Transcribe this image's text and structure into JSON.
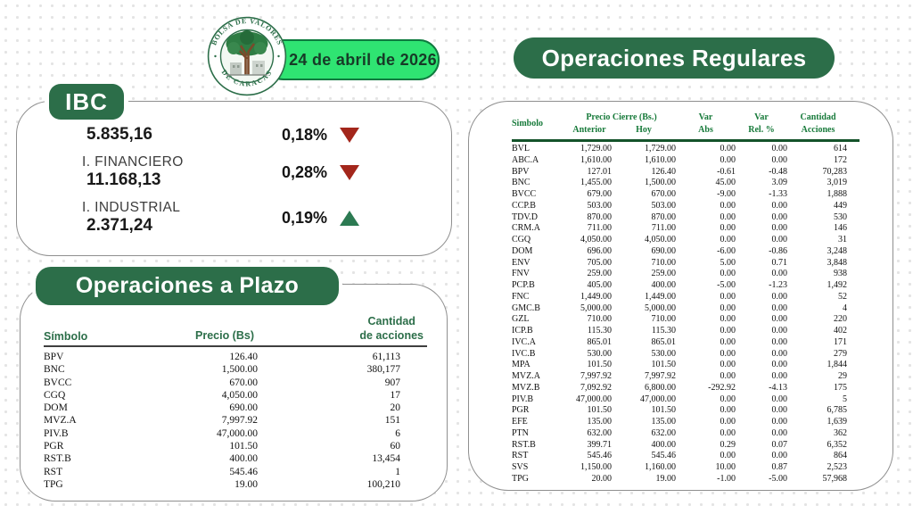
{
  "header": {
    "date": "24 de abril de 2026",
    "logo": {
      "top_text": "BOLSA DE VALORES",
      "bottom_text": "DE CARACAS"
    }
  },
  "ibc": {
    "badge": "IBC",
    "rows": [
      {
        "label": "",
        "value": "5.835,16",
        "change": "0,18%",
        "direction": "down"
      },
      {
        "label": "I. FINANCIERO",
        "value": "11.168,13",
        "change": "0,28%",
        "direction": "down"
      },
      {
        "label": "I. INDUSTRIAL",
        "value": "2.371,24",
        "change": "0,19%",
        "direction": "up"
      }
    ]
  },
  "plazo": {
    "title": "Operaciones a Plazo",
    "columns": {
      "symbol": "Símbolo",
      "price": "Precio (Bs)",
      "quantity": "Cantidad\nde acciones"
    },
    "rows": [
      [
        "BPV",
        "126.40",
        "61,113"
      ],
      [
        "BNC",
        "1,500.00",
        "380,177"
      ],
      [
        "BVCC",
        "670.00",
        "907"
      ],
      [
        "CGQ",
        "4,050.00",
        "17"
      ],
      [
        "DOM",
        "690.00",
        "20"
      ],
      [
        "MVZ.A",
        "7,997.92",
        "151"
      ],
      [
        "PIV.B",
        "47,000.00",
        "6"
      ],
      [
        "PGR",
        "101.50",
        "60"
      ],
      [
        "RST.B",
        "400.00",
        "13,454"
      ],
      [
        "RST",
        "545.46",
        "1"
      ],
      [
        "TPG",
        "19.00",
        "100,210"
      ]
    ]
  },
  "regulares": {
    "title": "Operaciones Regulares",
    "columns": {
      "symbol": "Simbolo",
      "price_group": "Precio Cierre (Bs.)",
      "anterior": "Anterior",
      "hoy": "Hoy",
      "var_abs": "Var\nAbs",
      "var_rel": "Var\nRel. %",
      "quantity": "Cantidad\nAcciones"
    },
    "rows": [
      [
        "BVL",
        "1,729.00",
        "1,729.00",
        "0.00",
        "0.00",
        "614"
      ],
      [
        "ABC.A",
        "1,610.00",
        "1,610.00",
        "0.00",
        "0.00",
        "172"
      ],
      [
        "BPV",
        "127.01",
        "126.40",
        "-0.61",
        "-0.48",
        "70,283"
      ],
      [
        "BNC",
        "1,455.00",
        "1,500.00",
        "45.00",
        "3.09",
        "3,019"
      ],
      [
        "BVCC",
        "679.00",
        "670.00",
        "-9.00",
        "-1.33",
        "1,888"
      ],
      [
        "CCP.B",
        "503.00",
        "503.00",
        "0.00",
        "0.00",
        "449"
      ],
      [
        "TDV.D",
        "870.00",
        "870.00",
        "0.00",
        "0.00",
        "530"
      ],
      [
        "CRM.A",
        "711.00",
        "711.00",
        "0.00",
        "0.00",
        "146"
      ],
      [
        "CGQ",
        "4,050.00",
        "4,050.00",
        "0.00",
        "0.00",
        "31"
      ],
      [
        "DOM",
        "696.00",
        "690.00",
        "-6.00",
        "-0.86",
        "3,248"
      ],
      [
        "ENV",
        "705.00",
        "710.00",
        "5.00",
        "0.71",
        "3,848"
      ],
      [
        "FNV",
        "259.00",
        "259.00",
        "0.00",
        "0.00",
        "938"
      ],
      [
        "PCP.B",
        "405.00",
        "400.00",
        "-5.00",
        "-1.23",
        "1,492"
      ],
      [
        "FNC",
        "1,449.00",
        "1,449.00",
        "0.00",
        "0.00",
        "52"
      ],
      [
        "GMC.B",
        "5,000.00",
        "5,000.00",
        "0.00",
        "0.00",
        "4"
      ],
      [
        "GZL",
        "710.00",
        "710.00",
        "0.00",
        "0.00",
        "220"
      ],
      [
        "ICP.B",
        "115.30",
        "115.30",
        "0.00",
        "0.00",
        "402"
      ],
      [
        "IVC.A",
        "865.01",
        "865.01",
        "0.00",
        "0.00",
        "171"
      ],
      [
        "IVC.B",
        "530.00",
        "530.00",
        "0.00",
        "0.00",
        "279"
      ],
      [
        "MPA",
        "101.50",
        "101.50",
        "0.00",
        "0.00",
        "1,844"
      ],
      [
        "MVZ.A",
        "7,997.92",
        "7,997.92",
        "0.00",
        "0.00",
        "29"
      ],
      [
        "MVZ.B",
        "7,092.92",
        "6,800.00",
        "-292.92",
        "-4.13",
        "175"
      ],
      [
        "PIV.B",
        "47,000.00",
        "47,000.00",
        "0.00",
        "0.00",
        "5"
      ],
      [
        "PGR",
        "101.50",
        "101.50",
        "0.00",
        "0.00",
        "6,785"
      ],
      [
        "EFE",
        "135.00",
        "135.00",
        "0.00",
        "0.00",
        "1,639"
      ],
      [
        "PTN",
        "632.00",
        "632.00",
        "0.00",
        "0.00",
        "362"
      ],
      [
        "RST.B",
        "399.71",
        "400.00",
        "0.29",
        "0.07",
        "6,352"
      ],
      [
        "RST",
        "545.46",
        "545.46",
        "0.00",
        "0.00",
        "864"
      ],
      [
        "SVS",
        "1,150.00",
        "1,160.00",
        "10.00",
        "0.87",
        "2,523"
      ],
      [
        "TPG",
        "20.00",
        "19.00",
        "-1.00",
        "-5.00",
        "57,968"
      ]
    ]
  },
  "colors": {
    "brand-green": "#2C6E49",
    "bright-green": "#2FE472",
    "pill-border-green": "#0E7A3E",
    "table-header-green": "#177A3A",
    "rule-green": "#14532A",
    "down-red": "#A3261B",
    "up-green": "#2C7A52"
  }
}
